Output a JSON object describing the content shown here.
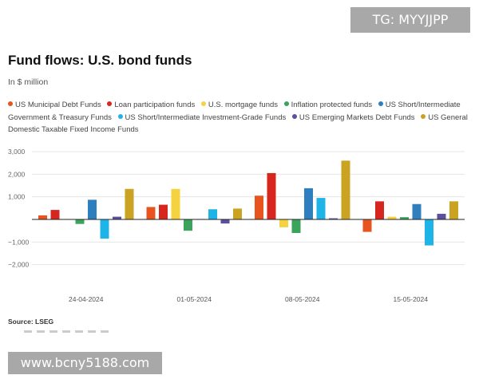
{
  "watermarks": {
    "top": "TG: MYYJJPP",
    "bottom": "www.bcny5188.com"
  },
  "source": "Source: LSEG",
  "chart_data": {
    "type": "bar",
    "title": "Fund flows: U.S. bond funds",
    "subtitle": "In $ million",
    "xlabel": "",
    "ylabel": "",
    "ylim": [
      -3000,
      3000
    ],
    "yticks": [
      -2000,
      -1000,
      0,
      1000,
      2000,
      3000
    ],
    "ytick_labels": [
      "−2,000",
      "−1,000",
      "",
      "1,000",
      "2,000",
      "3,000"
    ],
    "grid": true,
    "legend_position": "top",
    "categories": [
      "24-04-2024",
      "01-05-2024",
      "08-05-2024",
      "15-05-2024"
    ],
    "series": [
      {
        "name": "US Municipal Debt Funds",
        "color": "#e8541e",
        "values": [
          180,
          550,
          1050,
          -550
        ]
      },
      {
        "name": "Loan participation funds",
        "color": "#d7261e",
        "values": [
          420,
          650,
          2050,
          800
        ]
      },
      {
        "name": "U.S. mortgage funds",
        "color": "#f5d33f",
        "values": [
          20,
          1350,
          -350,
          120
        ]
      },
      {
        "name": "Inflation protected funds",
        "color": "#3aa35c",
        "values": [
          -200,
          -500,
          -600,
          100
        ]
      },
      {
        "name": "US Short/Intermediate Government & Treasury Funds",
        "color": "#2f7fbf",
        "values": [
          870,
          20,
          1380,
          680
        ]
      },
      {
        "name": "US Short/Intermediate Investment-Grade Funds",
        "color": "#1fb4e8",
        "values": [
          -850,
          450,
          950,
          -1150
        ]
      },
      {
        "name": "US Emerging Markets Debt Funds",
        "color": "#5b4f9e",
        "values": [
          120,
          -180,
          50,
          250
        ]
      },
      {
        "name": "US General Domestic Taxable Fixed Income Funds",
        "color": "#c9a321",
        "values": [
          1350,
          480,
          2600,
          800
        ]
      }
    ]
  }
}
